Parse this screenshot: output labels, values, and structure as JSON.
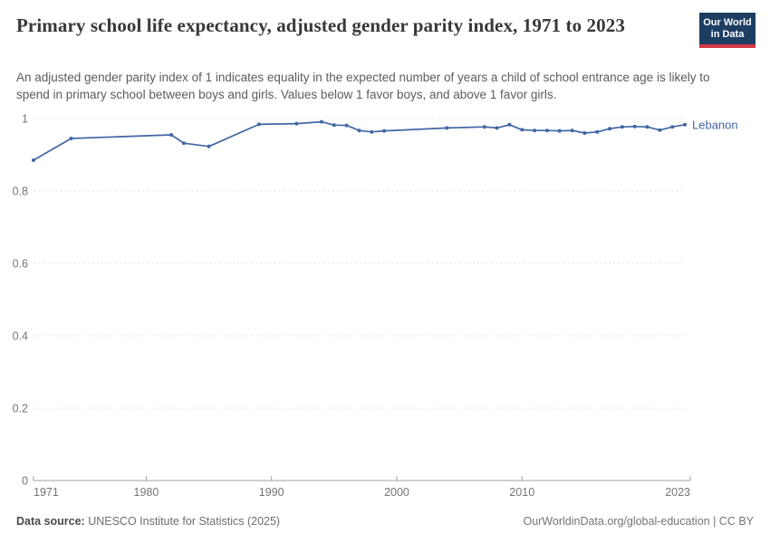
{
  "header": {
    "title": "Primary school life expectancy, adjusted gender parity index, 1971 to 2023",
    "subtitle": "An adjusted gender parity index of 1 indicates equality in the expected number of years a child of school entrance age is likely to spend in primary school between boys and girls. Values below 1 favor boys, and above 1 favor girls."
  },
  "logo": {
    "line1": "Our World",
    "line2": "in Data",
    "bg_color": "#1d3d63",
    "stripe_color": "#d23a47"
  },
  "chart_data": {
    "type": "line",
    "title": "Primary school life expectancy, adjusted gender parity index, 1971 to 2023",
    "xlabel": "",
    "ylabel": "",
    "x_range": [
      1971,
      2023
    ],
    "ylim": [
      0,
      1.05
    ],
    "x_ticks": [
      1971,
      1980,
      1990,
      2000,
      2010,
      2023
    ],
    "y_ticks": [
      0,
      0.2,
      0.4,
      0.6,
      0.8,
      1
    ],
    "grid": true,
    "legend_position": "end-of-line-label",
    "series": [
      {
        "name": "Lebanon",
        "color": "#4166a5",
        "points": [
          [
            1971,
            0.885
          ],
          [
            1974,
            0.945
          ],
          [
            1982,
            0.955
          ],
          [
            1983,
            0.932
          ],
          [
            1985,
            0.923
          ],
          [
            1989,
            0.984
          ],
          [
            1992,
            0.986
          ],
          [
            1994,
            0.991
          ],
          [
            1995,
            0.982
          ],
          [
            1996,
            0.981
          ],
          [
            1997,
            0.967
          ],
          [
            1998,
            0.963
          ],
          [
            1999,
            0.966
          ],
          [
            2004,
            0.974
          ],
          [
            2007,
            0.977
          ],
          [
            2008,
            0.974
          ],
          [
            2009,
            0.983
          ],
          [
            2010,
            0.969
          ],
          [
            2011,
            0.967
          ],
          [
            2012,
            0.967
          ],
          [
            2013,
            0.966
          ],
          [
            2014,
            0.967
          ],
          [
            2015,
            0.96
          ],
          [
            2016,
            0.963
          ],
          [
            2017,
            0.972
          ],
          [
            2018,
            0.977
          ],
          [
            2019,
            0.978
          ],
          [
            2020,
            0.977
          ],
          [
            2021,
            0.968
          ],
          [
            2022,
            0.977
          ],
          [
            2023,
            0.983
          ]
        ]
      }
    ]
  },
  "footer": {
    "source_label": "Data source:",
    "source_rest": " UNESCO Institute for Statistics (2025)",
    "url_text": "OurWorldinData.org/global-education | CC BY"
  },
  "colors": {
    "accent_line": "#4166a5",
    "grid": "#e3e3e3",
    "axis": "#a0a0a0",
    "tick_text": "#757575",
    "title_text": "#383838"
  }
}
